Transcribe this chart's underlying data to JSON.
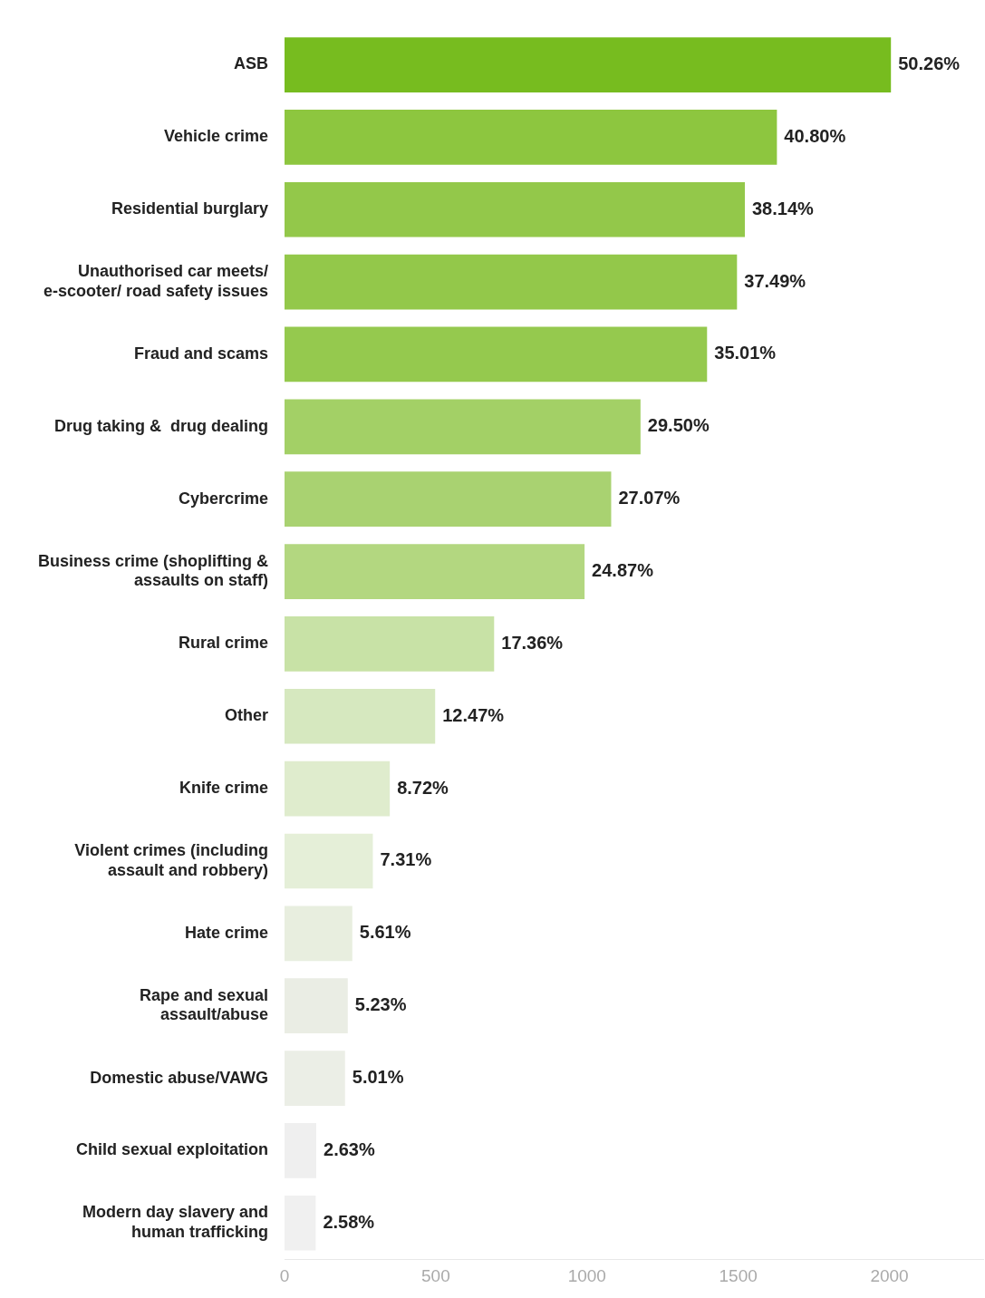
{
  "chart_data": {
    "type": "bar",
    "orientation": "horizontal",
    "categories": [
      "ASB",
      "Vehicle crime",
      "Residential burglary",
      "Unauthorised car meets/ e-scooter/ road safety issues",
      "Fraud and scams",
      "Drug taking &  drug dealing",
      "Cybercrime",
      "Business crime (shoplifting & assaults on staff)",
      "Rural crime",
      "Other",
      "Knife crime",
      "Violent crimes (including assault and robbery)",
      "Hate crime",
      "Rape and sexual assault/abuse",
      "Domestic abuse/VAWG",
      "Child sexual exploitation",
      "Modern day slavery and human trafficking"
    ],
    "values": [
      2005,
      1628,
      1522,
      1496,
      1397,
      1177,
      1080,
      992,
      693,
      498,
      348,
      292,
      224,
      209,
      200,
      105,
      103
    ],
    "annotations": [
      {
        "text": "50.26%",
        "x": 2005,
        "y": "ASB"
      },
      {
        "text": "40.80%",
        "x": 1628,
        "y": "Vehicle crime"
      },
      {
        "text": "38.14%",
        "x": 1522,
        "y": "Residential burglary"
      },
      {
        "text": "37.49%",
        "x": 1496,
        "y": "Unauthorised car meets/ e-scooter/ road safety issues"
      },
      {
        "text": "35.01%",
        "x": 1397,
        "y": "Fraud and scams"
      },
      {
        "text": "29.50%",
        "x": 1177,
        "y": "Drug taking &  drug dealing"
      },
      {
        "text": "27.07%",
        "x": 1080,
        "y": "Cybercrime"
      },
      {
        "text": "24.87%",
        "x": 992,
        "y": "Business crime (shoplifting & assaults on staff)"
      },
      {
        "text": "17.36%",
        "x": 693,
        "y": "Rural crime"
      },
      {
        "text": "12.47%",
        "x": 498,
        "y": "Other"
      },
      {
        "text": "8.72%",
        "x": 348,
        "y": "Knife crime"
      },
      {
        "text": "7.31%",
        "x": 292,
        "y": "Violent crimes (including assault and robbery)"
      },
      {
        "text": "5.61%",
        "x": 224,
        "y": "Hate crime"
      },
      {
        "text": "5.23%",
        "x": 209,
        "y": "Rape and sexual assault/abuse"
      },
      {
        "text": "5.01%",
        "x": 200,
        "y": "Domestic abuse/VAWG"
      },
      {
        "text": "2.63%",
        "x": 105,
        "y": "Child sexual exploitation"
      },
      {
        "text": "2.58%",
        "x": 103,
        "y": "Modern day slavery and human trafficking"
      }
    ],
    "colors": [
      "#77bc1f",
      "#8dc63f",
      "#93c84a",
      "#93c84a",
      "#95c94e",
      "#a3d066",
      "#a9d271",
      "#b3d780",
      "#c8e2a6",
      "#d6e8bf",
      "#dfeccd",
      "#e5efd8",
      "#e8eedf",
      "#eaede4",
      "#ebeee6",
      "#efefef",
      "#f0f0f0"
    ],
    "xlim": [
      0,
      2310
    ],
    "xticks": [
      0,
      500,
      1000,
      1500,
      2000
    ],
    "grid": false,
    "legend": false
  }
}
